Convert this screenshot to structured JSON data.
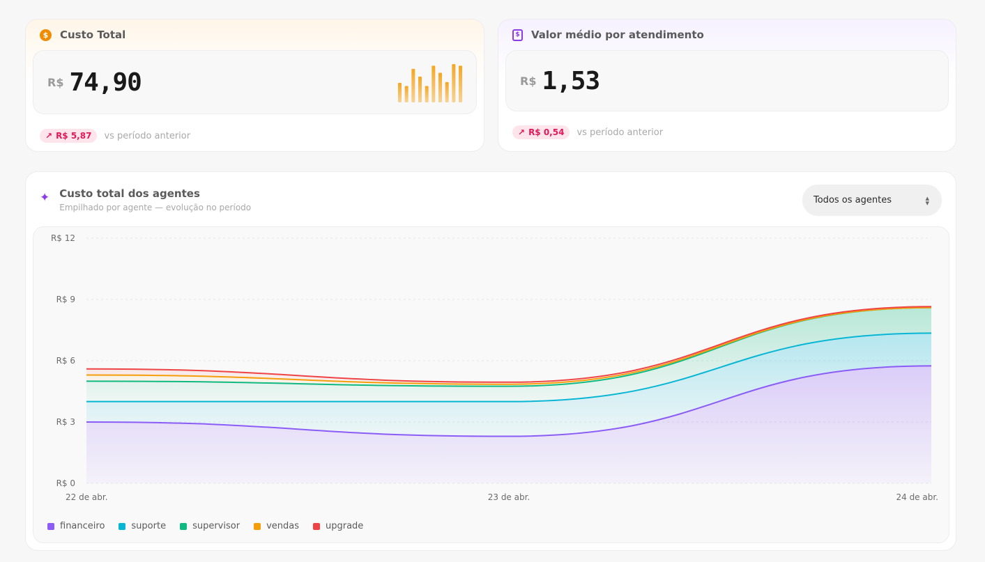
{
  "cost_card": {
    "title": "Custo Total",
    "icon": "coin-icon",
    "currency": "R$",
    "amount": "74,90",
    "delta": "R$ 5,87",
    "delta_caption": "vs período anterior",
    "mini_bar_color": "#f5a623",
    "mini_bars": [
      0.5,
      0.42,
      0.86,
      0.66,
      0.42,
      0.94,
      0.76,
      0.52,
      0.98,
      0.94
    ]
  },
  "avg_card": {
    "title": "Valor médio por atendimento",
    "icon": "receipt-icon",
    "currency": "R$",
    "amount": "1,53",
    "delta": "R$ 0,54",
    "delta_caption": "vs período anterior"
  },
  "chart_section": {
    "title": "Custo total dos agentes",
    "subtitle": "Empilhado por agente — evolução no período",
    "select_value": "Todos os agentes"
  },
  "chart_data": {
    "type": "area",
    "stacked": true,
    "categories": [
      "22 de abr.",
      "23 de abr.",
      "24 de abr."
    ],
    "series": [
      {
        "name": "financeiro",
        "color": "#8b5cf6",
        "values": [
          3.0,
          2.3,
          5.75
        ]
      },
      {
        "name": "suporte",
        "color": "#06b6d4",
        "values": [
          1.0,
          1.7,
          1.6
        ]
      },
      {
        "name": "supervisor",
        "color": "#10b981",
        "values": [
          1.0,
          0.75,
          1.25
        ]
      },
      {
        "name": "vendas",
        "color": "#f59e0b",
        "values": [
          0.3,
          0.1,
          0.0
        ]
      },
      {
        "name": "upgrade",
        "color": "#ef4444",
        "values": [
          0.3,
          0.1,
          0.05
        ]
      }
    ],
    "y_tick_labels": [
      "R$ 0",
      "R$ 3",
      "R$ 6",
      "R$ 9",
      "R$ 12"
    ],
    "y_ticks": [
      0,
      3,
      6,
      9,
      12
    ],
    "ylim": [
      0,
      12
    ],
    "grid": true,
    "legend_position": "bottom-left"
  }
}
